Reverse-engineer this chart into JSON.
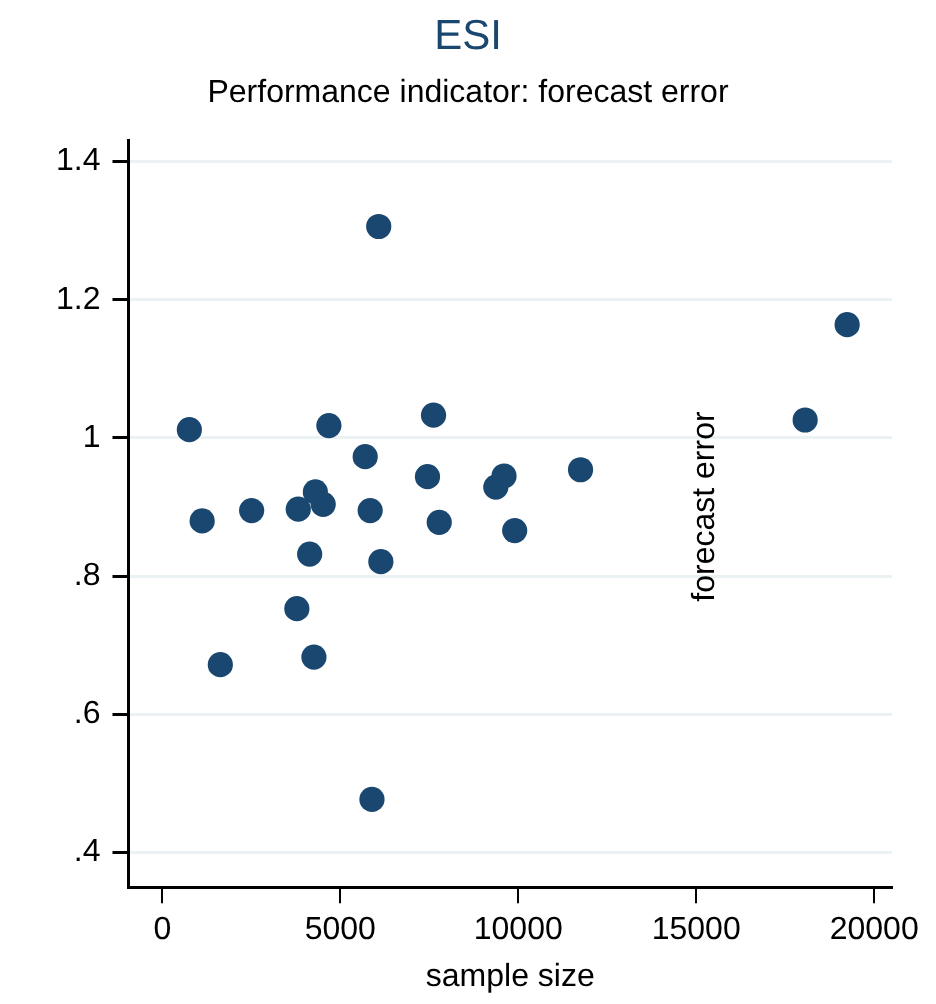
{
  "chart_data": {
    "type": "scatter",
    "title": "ESI",
    "subtitle": "Performance indicator: forecast error",
    "xlabel": "sample size",
    "ylabel": "forecast error",
    "x": [
      760,
      1120,
      1630,
      2510,
      3780,
      3820,
      4140,
      4300,
      4520,
      4260,
      4680,
      5700,
      5840,
      5890,
      6080,
      6140,
      7450,
      7620,
      7780,
      9370,
      9600,
      9900,
      11750,
      18060,
      19240
    ],
    "values": [
      1.012,
      0.88,
      0.672,
      0.895,
      0.753,
      0.897,
      0.832,
      0.922,
      0.904,
      0.683,
      1.018,
      0.973,
      0.895,
      0.477,
      1.306,
      0.821,
      0.944,
      1.033,
      0.878,
      0.929,
      0.945,
      0.866,
      0.954,
      1.026,
      1.164
    ],
    "color": "#1a476f",
    "marker": "circle",
    "xlim": [
      -950,
      20500
    ],
    "xticks": [
      0,
      5000,
      10000,
      15000,
      20000
    ],
    "ylim": [
      0.35,
      1.43
    ],
    "yticks": [
      {
        "value": 0.4,
        "label": ".4"
      },
      {
        "value": 0.6,
        "label": ".6"
      },
      {
        "value": 0.8,
        "label": ".8"
      },
      1,
      1.2,
      1.4
    ],
    "grid": "y",
    "legend": false
  }
}
